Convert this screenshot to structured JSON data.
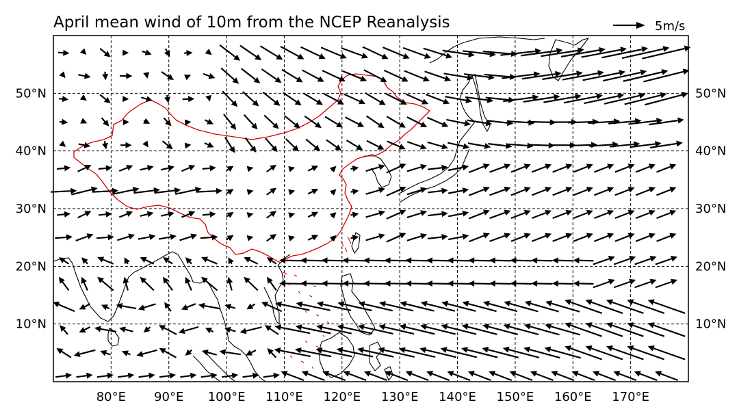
{
  "title": "April mean wind of 10m from the NCEP Reanalysis",
  "reference_key": {
    "label": "5m/s",
    "speed_ms": 5
  },
  "map": {
    "lon_range": [
      70,
      180
    ],
    "lat_range": [
      0,
      60
    ],
    "projection": "cylindrical",
    "gridlines": "dashed",
    "lon_ticks": [
      {
        "value": 80,
        "label": "80°E"
      },
      {
        "value": 90,
        "label": "90°E"
      },
      {
        "value": 100,
        "label": "100°E"
      },
      {
        "value": 110,
        "label": "110°E"
      },
      {
        "value": 120,
        "label": "120°E"
      },
      {
        "value": 130,
        "label": "130°E"
      },
      {
        "value": 140,
        "label": "140°E"
      },
      {
        "value": 150,
        "label": "150°E"
      },
      {
        "value": 160,
        "label": "160°E"
      },
      {
        "value": 170,
        "label": "170°E"
      }
    ],
    "lat_ticks": [
      {
        "value": 10,
        "label": "10°N"
      },
      {
        "value": 20,
        "label": "20°N"
      },
      {
        "value": 30,
        "label": "30°N"
      },
      {
        "value": 40,
        "label": "40°N"
      },
      {
        "value": 50,
        "label": "50°N"
      }
    ],
    "colors": {
      "coastline": "#000000",
      "china_border": "#d40000",
      "vectors": "#000000"
    }
  },
  "wind_vectors": {
    "description_of_fields": "lon/lat in degrees; u/v in m/s",
    "lons": [
      71.8,
      75.4,
      79.0,
      82.6,
      86.2,
      89.8,
      93.4,
      97.0,
      100.6,
      104.2,
      107.8,
      111.4,
      115.0,
      118.6,
      122.2,
      125.8,
      129.4,
      133.0,
      136.6,
      140.2,
      143.8,
      147.4,
      151.0,
      154.6,
      158.2,
      161.8,
      165.4,
      169.0,
      172.6,
      176.2
    ],
    "lats": [
      57,
      53,
      49,
      45,
      41,
      37,
      33,
      29,
      25,
      21,
      17,
      13,
      9,
      5,
      1
    ]
  }
}
